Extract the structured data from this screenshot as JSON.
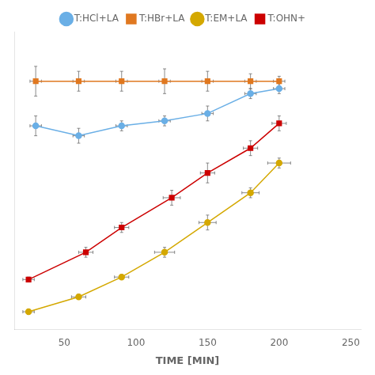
{
  "chart_data": {
    "type": "line",
    "xlabel": "TIME [MIN]",
    "xlim": [
      15,
      257
    ],
    "xticks": [
      50,
      100,
      150,
      200,
      250
    ],
    "ylim": [
      -5,
      115
    ],
    "grid": false,
    "legend": "top",
    "tick_labels": "x",
    "series": [
      {
        "name": "T:HCl+LA",
        "color": "#6aafe6",
        "marker": "circle",
        "x": [
          30,
          60,
          90,
          120,
          150,
          180,
          200
        ],
        "values": [
          77,
          73,
          77,
          79,
          82,
          90,
          92
        ],
        "xerr": [
          4,
          4,
          4,
          4,
          4,
          4,
          4
        ],
        "yerr": [
          4,
          3,
          2,
          2,
          3,
          2,
          2
        ]
      },
      {
        "name": "T:HBr+LA",
        "color": "#e07820",
        "marker": "square",
        "x": [
          30,
          60,
          90,
          120,
          150,
          180,
          200
        ],
        "values": [
          95,
          95,
          95,
          95,
          95,
          95,
          95
        ],
        "xerr": [
          4,
          4,
          4,
          4,
          4,
          4,
          4
        ],
        "yerr": [
          6,
          4,
          4,
          5,
          4,
          3,
          2
        ]
      },
      {
        "name": "T:EM+LA",
        "color": "#d4a800",
        "marker": "circle",
        "x": [
          25,
          60,
          90,
          120,
          150,
          180,
          200
        ],
        "values": [
          2,
          8,
          16,
          26,
          38,
          50,
          62
        ],
        "xerr": [
          4,
          5,
          5,
          7,
          6,
          6,
          8
        ],
        "yerr": [
          1,
          1,
          1,
          2,
          3,
          2,
          2
        ]
      },
      {
        "name": "T:OHN+",
        "color": "#cc0000",
        "marker": "square",
        "x": [
          25,
          65,
          90,
          125,
          150,
          180,
          200
        ],
        "values": [
          15,
          26,
          36,
          48,
          58,
          68,
          78
        ],
        "xerr": [
          4,
          5,
          5,
          6,
          5,
          5,
          5
        ],
        "yerr": [
          1,
          2,
          2,
          3,
          4,
          3,
          3
        ]
      }
    ]
  }
}
